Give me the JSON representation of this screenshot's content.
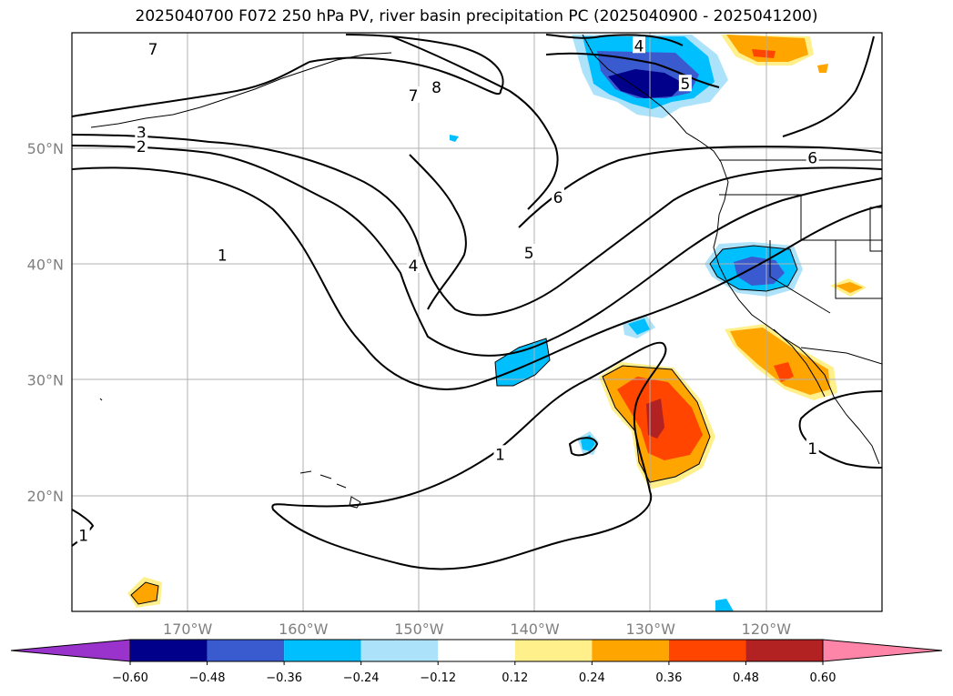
{
  "title": "2025040700 F072 250 hPa PV, river basin precipitation PC (2025040900 - 2025041200)",
  "map": {
    "lon_range": [
      -180,
      -110
    ],
    "lat_range": [
      10,
      60
    ],
    "lat_ticks": [
      {
        "value": 20,
        "label": "20°N"
      },
      {
        "value": 30,
        "label": "30°N"
      },
      {
        "value": 40,
        "label": "40°N"
      },
      {
        "value": 50,
        "label": "50°N"
      }
    ],
    "lon_ticks": [
      {
        "value": -170,
        "label": "170°W"
      },
      {
        "value": -160,
        "label": "160°W"
      },
      {
        "value": -150,
        "label": "150°W"
      },
      {
        "value": -140,
        "label": "140°W"
      },
      {
        "value": -130,
        "label": "130°W"
      },
      {
        "value": -120,
        "label": "120°W"
      }
    ],
    "grid": true
  },
  "contour_labels": [
    {
      "text": "7",
      "lon": -173,
      "lat": 58.5
    },
    {
      "text": "4",
      "lon": -131,
      "lat": 58.8
    },
    {
      "text": "8",
      "lon": -148.5,
      "lat": 55.2
    },
    {
      "text": "7",
      "lon": -150.5,
      "lat": 54.5
    },
    {
      "text": "5",
      "lon": -127,
      "lat": 55.5
    },
    {
      "text": "3",
      "lon": -174,
      "lat": 51.3
    },
    {
      "text": "2",
      "lon": -174,
      "lat": 50.1
    },
    {
      "text": "6",
      "lon": -116,
      "lat": 49.1
    },
    {
      "text": "6",
      "lon": -138,
      "lat": 45.7
    },
    {
      "text": "5",
      "lon": -140.5,
      "lat": 40.9
    },
    {
      "text": "4",
      "lon": -150.5,
      "lat": 39.8
    },
    {
      "text": "1",
      "lon": -167,
      "lat": 40.7
    },
    {
      "text": "1",
      "lon": -143,
      "lat": 23.5
    },
    {
      "text": "1",
      "lon": -116,
      "lat": 24
    },
    {
      "text": "1",
      "lon": -179,
      "lat": 16.5
    }
  ],
  "colorbar": {
    "levels": [
      "−0.60",
      "−0.48",
      "−0.36",
      "−0.24",
      "−0.12",
      "0.12",
      "0.24",
      "0.36",
      "0.48",
      "0.60"
    ],
    "colors": [
      "#9933cc",
      "#00008b",
      "#3a5bd0",
      "#00bfff",
      "#ade3fa",
      "#ffffff",
      "#fff08c",
      "#ffa500",
      "#ff4500",
      "#b22222",
      "#ff85a8"
    ]
  }
}
